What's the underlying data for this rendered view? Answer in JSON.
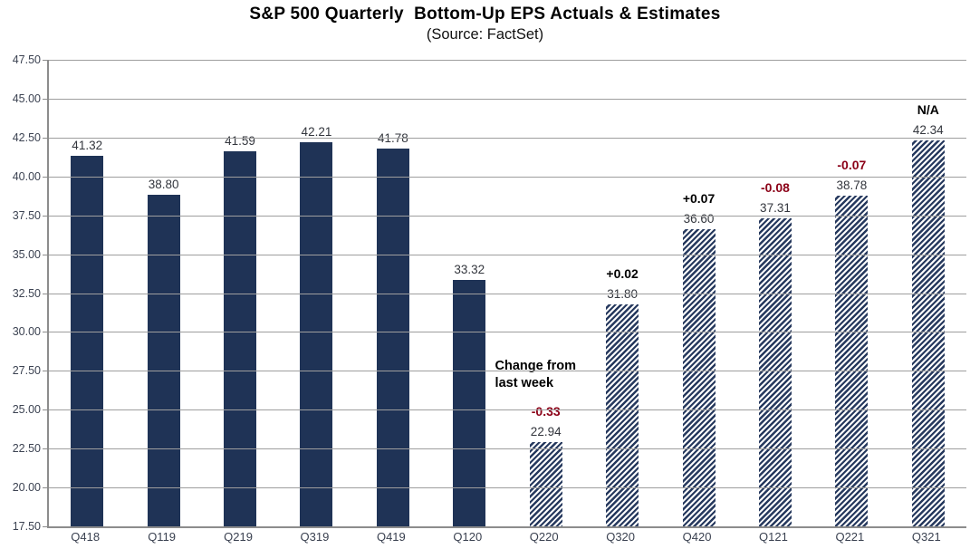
{
  "chart_data": {
    "type": "bar",
    "title": "S&P 500 Quarterly  Bottom-Up EPS Actuals & Estimates",
    "subtitle": "(Source: FactSet)",
    "ylim": [
      17.5,
      47.5
    ],
    "ytick_step": 2.5,
    "grid": "horizontal",
    "legend": "none",
    "categories": [
      "Q418",
      "Q119",
      "Q219",
      "Q319",
      "Q419",
      "Q120",
      "Q220",
      "Q320",
      "Q420",
      "Q121",
      "Q221",
      "Q321"
    ],
    "values": [
      41.32,
      38.8,
      41.59,
      42.21,
      41.78,
      33.32,
      22.94,
      31.8,
      36.6,
      37.31,
      38.78,
      42.34
    ],
    "bar_styles": [
      "solid",
      "solid",
      "solid",
      "solid",
      "solid",
      "solid",
      "hatched",
      "hatched",
      "hatched",
      "hatched",
      "hatched",
      "hatched"
    ],
    "value_labels": [
      "41.32",
      "38.80",
      "41.59",
      "42.21",
      "41.78",
      "33.32",
      "22.94",
      "31.80",
      "36.60",
      "37.31",
      "38.78",
      "42.34"
    ],
    "change_labels": [
      null,
      null,
      null,
      null,
      null,
      null,
      "-0.33",
      "+0.02",
      "+0.07",
      "-0.08",
      "-0.07",
      "N/A"
    ],
    "annotation": {
      "text": "Change from last week",
      "category": "Q220"
    },
    "series_meaning": {
      "solid": "Actuals",
      "hatched": "Estimates"
    },
    "colors": {
      "solid_bar": "#1f3356",
      "hatch_stripe": "#26395e",
      "hatch_background": "#ffffff",
      "negative_change": "#8b0017",
      "positive_change": "#000000",
      "gridline": "#9e9e9e",
      "axis_line": "#8c8c8c"
    }
  }
}
